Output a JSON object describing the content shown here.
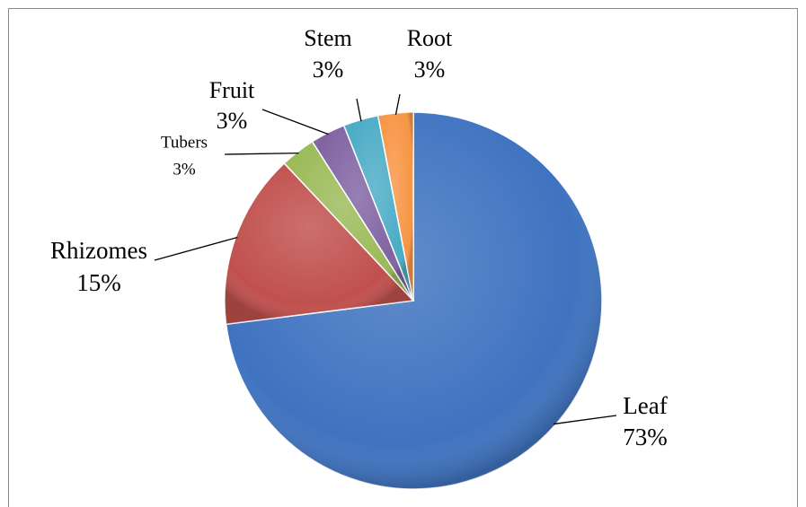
{
  "chart_data": {
    "type": "pie",
    "categories": [
      "Leaf",
      "Rhizomes",
      "Tubers",
      "Fruit",
      "Stem",
      "Root"
    ],
    "values": [
      73,
      15,
      3,
      3,
      3,
      3
    ],
    "value_labels": [
      "73%",
      "15%",
      "3%",
      "3%",
      "3%",
      "3%"
    ],
    "colors": [
      "#3f73c0",
      "#c0504d",
      "#9bbb59",
      "#8064a2",
      "#4bacc6",
      "#f79646"
    ]
  }
}
